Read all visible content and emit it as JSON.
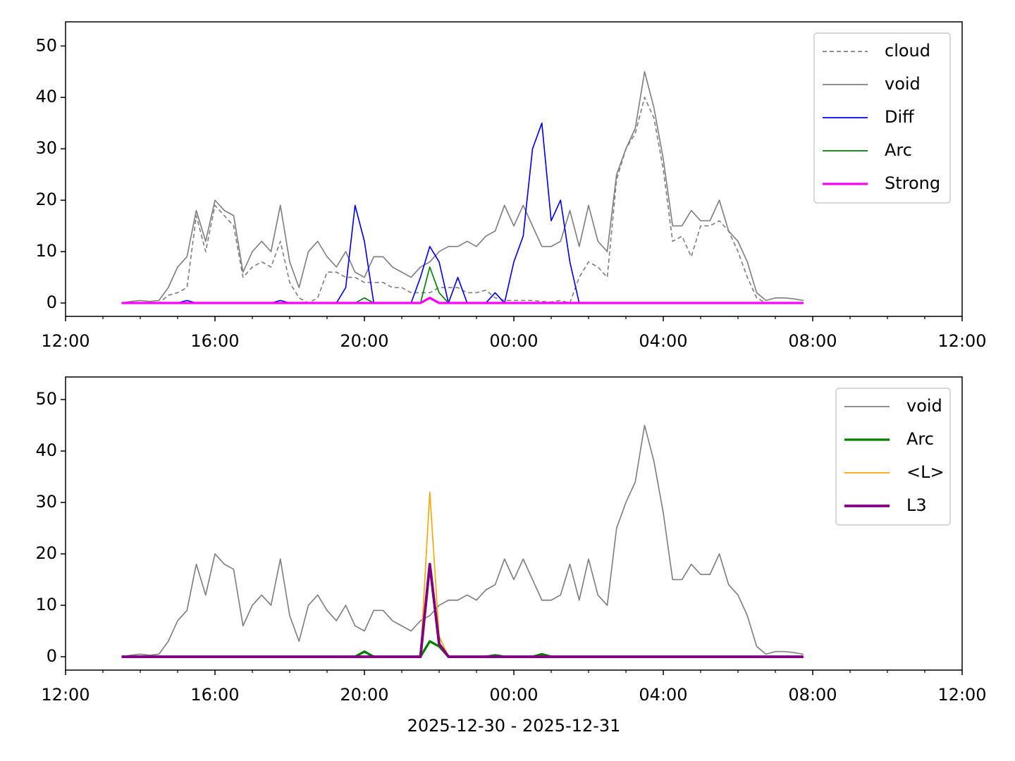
{
  "chart_data": [
    {
      "type": "line",
      "legend": "upper right",
      "x": [
        13.5,
        13.75,
        14,
        14.25,
        14.5,
        14.75,
        15,
        15.25,
        15.5,
        15.75,
        16,
        16.25,
        16.5,
        16.75,
        17,
        17.25,
        17.5,
        17.75,
        18,
        18.25,
        18.5,
        18.75,
        19,
        19.25,
        19.5,
        19.75,
        20,
        20.25,
        20.5,
        20.75,
        21,
        21.25,
        21.5,
        21.75,
        22,
        22.25,
        22.5,
        22.75,
        23,
        23.25,
        23.5,
        23.75,
        24,
        24.25,
        24.5,
        24.75,
        25,
        25.25,
        25.5,
        25.75,
        26,
        26.25,
        26.5,
        26.75,
        27,
        27.25,
        27.5,
        27.75,
        28,
        28.25,
        28.5,
        28.75,
        29,
        29.25,
        29.5,
        29.75,
        30,
        30.25,
        30.5,
        30.75,
        31,
        31.25,
        31.5,
        31.75
      ],
      "xlim": [
        12,
        36
      ],
      "xticks": [
        {
          "value": 12,
          "label": "12:00"
        },
        {
          "value": 16,
          "label": "16:00"
        },
        {
          "value": 20,
          "label": "20:00"
        },
        {
          "value": 24,
          "label": "00:00"
        },
        {
          "value": 28,
          "label": "04:00"
        },
        {
          "value": 32,
          "label": "08:00"
        },
        {
          "value": 36,
          "label": "12:00"
        }
      ],
      "xminorticks": [
        13,
        14,
        15,
        17,
        18,
        19,
        21,
        22,
        23,
        25,
        26,
        27,
        29,
        30,
        31,
        33,
        34,
        35
      ],
      "ylim": [
        -2.6,
        54.7
      ],
      "yticks": [
        0,
        10,
        20,
        30,
        40,
        50
      ],
      "series": [
        {
          "name": "cloud",
          "color": "#808080",
          "dashed": true,
          "linewidth": 1.5,
          "values": [
            0,
            0,
            0,
            0,
            0,
            1.5,
            2,
            3,
            17,
            10,
            19,
            17,
            15,
            5,
            7,
            8,
            7,
            12,
            4,
            1,
            0,
            1,
            6,
            6,
            5,
            5,
            4,
            4,
            4,
            3,
            3,
            2,
            2,
            2,
            3,
            3,
            3,
            2,
            2,
            2.5,
            1,
            0.5,
            0.5,
            0.5,
            0.5,
            0.3,
            0.2,
            0.5,
            0,
            5,
            8,
            7,
            5,
            24,
            30,
            33,
            40,
            36,
            26,
            12,
            13,
            9,
            15,
            15,
            16,
            14,
            10,
            5,
            1,
            0,
            0,
            0,
            0,
            0
          ]
        },
        {
          "name": "void",
          "color": "#808080",
          "linewidth": 1.5,
          "values": [
            0,
            0.3,
            0.5,
            0.3,
            0.5,
            3,
            7,
            9,
            18,
            12,
            20,
            18,
            17,
            6,
            10,
            12,
            10,
            19,
            8,
            3,
            10,
            12,
            9,
            7,
            10,
            6,
            5,
            9,
            9,
            7,
            6,
            5,
            7,
            8,
            10,
            11,
            11,
            12,
            11,
            13,
            14,
            19,
            15,
            19,
            15,
            11,
            11,
            12,
            18,
            11,
            19,
            12,
            10,
            25,
            30,
            34,
            45,
            38,
            28,
            15,
            15,
            18,
            16,
            16,
            20,
            14,
            12,
            8,
            2,
            0.5,
            1,
            1,
            0.8,
            0.5
          ]
        },
        {
          "name": "Diff",
          "color": "#0000ff",
          "linewidth": 1.5,
          "values": [
            0,
            0,
            0,
            0,
            0,
            0,
            0,
            0.5,
            0,
            0,
            0,
            0,
            0,
            0,
            0,
            0,
            0,
            0.5,
            0,
            0,
            0,
            0,
            0,
            0,
            3,
            19,
            12,
            0,
            0,
            0,
            0,
            0,
            5,
            11,
            8,
            0,
            5,
            0,
            0,
            0,
            2,
            0,
            8,
            13,
            30,
            35,
            16,
            20,
            8,
            0,
            0,
            0,
            0,
            0,
            0,
            0,
            0,
            0,
            0,
            0,
            0,
            0,
            0,
            0,
            0,
            0,
            0,
            0,
            0,
            0,
            0,
            0,
            0,
            0
          ]
        },
        {
          "name": "Arc",
          "color": "#008000",
          "linewidth": 1.5,
          "values": [
            0,
            0,
            0,
            0,
            0,
            0,
            0,
            0,
            0,
            0,
            0,
            0,
            0,
            0,
            0,
            0,
            0,
            0,
            0,
            0,
            0,
            0,
            0,
            0,
            0,
            0,
            1,
            0,
            0,
            0,
            0,
            0,
            0,
            7,
            2,
            0,
            0,
            0,
            0,
            0,
            0,
            0,
            0,
            0,
            0,
            0,
            0,
            0,
            0,
            0,
            0,
            0,
            0,
            0,
            0,
            0,
            0,
            0,
            0,
            0,
            0,
            0,
            0,
            0,
            0,
            0,
            0,
            0,
            0,
            0,
            0,
            0,
            0,
            0
          ]
        },
        {
          "name": "Strong",
          "color": "#ff00ff",
          "linewidth": 3,
          "values": [
            0,
            0,
            0,
            0,
            0,
            0,
            0,
            0,
            0,
            0,
            0,
            0,
            0,
            0,
            0,
            0,
            0,
            0,
            0,
            0,
            0,
            0,
            0,
            0,
            0,
            0,
            0,
            0,
            0,
            0,
            0,
            0,
            0,
            1,
            0,
            0,
            0,
            0,
            0,
            0,
            0,
            0,
            0,
            0,
            0,
            0,
            0,
            0,
            0,
            0,
            0,
            0,
            0,
            0,
            0,
            0,
            0,
            0,
            0,
            0,
            0,
            0,
            0,
            0,
            0,
            0,
            0,
            0,
            0,
            0,
            0,
            0,
            0,
            0
          ]
        }
      ]
    },
    {
      "type": "line",
      "legend": "upper right",
      "xlabel": "2025-12-30 - 2025-12-31",
      "x": [
        13.5,
        13.75,
        14,
        14.25,
        14.5,
        14.75,
        15,
        15.25,
        15.5,
        15.75,
        16,
        16.25,
        16.5,
        16.75,
        17,
        17.25,
        17.5,
        17.75,
        18,
        18.25,
        18.5,
        18.75,
        19,
        19.25,
        19.5,
        19.75,
        20,
        20.25,
        20.5,
        20.75,
        21,
        21.25,
        21.5,
        21.75,
        22,
        22.25,
        22.5,
        22.75,
        23,
        23.25,
        23.5,
        23.75,
        24,
        24.25,
        24.5,
        24.75,
        25,
        25.25,
        25.5,
        25.75,
        26,
        26.25,
        26.5,
        26.75,
        27,
        27.25,
        27.5,
        27.75,
        28,
        28.25,
        28.5,
        28.75,
        29,
        29.25,
        29.5,
        29.75,
        30,
        30.25,
        30.5,
        30.75,
        31,
        31.25,
        31.5,
        31.75
      ],
      "xlim": [
        12,
        36
      ],
      "xticks": [
        {
          "value": 12,
          "label": "12:00"
        },
        {
          "value": 16,
          "label": "16:00"
        },
        {
          "value": 20,
          "label": "20:00"
        },
        {
          "value": 24,
          "label": "00:00"
        },
        {
          "value": 28,
          "label": "04:00"
        },
        {
          "value": 32,
          "label": "08:00"
        },
        {
          "value": 36,
          "label": "12:00"
        }
      ],
      "xminorticks": [
        13,
        14,
        15,
        17,
        18,
        19,
        21,
        22,
        23,
        25,
        26,
        27,
        29,
        30,
        31,
        33,
        34,
        35
      ],
      "ylim": [
        -2.6,
        54.4
      ],
      "yticks": [
        0,
        10,
        20,
        30,
        40,
        50
      ],
      "series": [
        {
          "name": "void",
          "color": "#808080",
          "linewidth": 1.5,
          "values": [
            0,
            0.3,
            0.5,
            0.3,
            0.5,
            3,
            7,
            9,
            18,
            12,
            20,
            18,
            17,
            6,
            10,
            12,
            10,
            19,
            8,
            3,
            10,
            12,
            9,
            7,
            10,
            6,
            5,
            9,
            9,
            7,
            6,
            5,
            7,
            8,
            10,
            11,
            11,
            12,
            11,
            13,
            14,
            19,
            15,
            19,
            15,
            11,
            11,
            12,
            18,
            11,
            19,
            12,
            10,
            25,
            30,
            34,
            45,
            38,
            28,
            15,
            15,
            18,
            16,
            16,
            20,
            14,
            12,
            8,
            2,
            0.5,
            1,
            1,
            0.8,
            0.5
          ]
        },
        {
          "name": "Arc",
          "color": "#008000",
          "linewidth": 3,
          "values": [
            0,
            0,
            0,
            0,
            0,
            0,
            0,
            0,
            0,
            0,
            0,
            0,
            0,
            0,
            0,
            0,
            0,
            0,
            0,
            0,
            0,
            0,
            0,
            0,
            0,
            0,
            1,
            0,
            0,
            0,
            0,
            0,
            0,
            3,
            2,
            0,
            0,
            0,
            0,
            0,
            0.3,
            0,
            0,
            0,
            0,
            0.5,
            0,
            0,
            0,
            0,
            0,
            0,
            0,
            0,
            0,
            0,
            0,
            0,
            0,
            0,
            0,
            0,
            0,
            0,
            0,
            0,
            0,
            0,
            0,
            0,
            0,
            0,
            0,
            0
          ]
        },
        {
          "name": "<L>",
          "color": "#ffa500",
          "linewidth": 1.5,
          "values": [
            0,
            0,
            0,
            0,
            0,
            0,
            0,
            0,
            0,
            0,
            0,
            0,
            0,
            0,
            0,
            0,
            0,
            0,
            0,
            0,
            0,
            0,
            0,
            0,
            0,
            0,
            0,
            0,
            0,
            0,
            0,
            0,
            0,
            32,
            4,
            0,
            0,
            0,
            0,
            0,
            0,
            0,
            0,
            0,
            0,
            0,
            0,
            0,
            0,
            0,
            0,
            0,
            0,
            0,
            0,
            0,
            0,
            0,
            0,
            0,
            0,
            0,
            0,
            0,
            0,
            0,
            0,
            0,
            0,
            0,
            0,
            0,
            0,
            0
          ]
        },
        {
          "name": "L3",
          "color": "#800080",
          "linewidth": 3.5,
          "values": [
            0,
            0,
            0,
            0,
            0,
            0,
            0,
            0,
            0,
            0,
            0,
            0,
            0,
            0,
            0,
            0,
            0,
            0,
            0,
            0,
            0,
            0,
            0,
            0,
            0,
            0,
            0,
            0,
            0,
            0,
            0,
            0,
            0,
            18,
            2.5,
            0,
            0,
            0,
            0,
            0,
            0,
            0,
            0,
            0,
            0,
            0,
            0,
            0,
            0,
            0,
            0,
            0,
            0,
            0,
            0,
            0,
            0,
            0,
            0,
            0,
            0,
            0,
            0,
            0,
            0,
            0,
            0,
            0,
            0,
            0,
            0,
            0,
            0,
            0
          ]
        }
      ]
    }
  ]
}
